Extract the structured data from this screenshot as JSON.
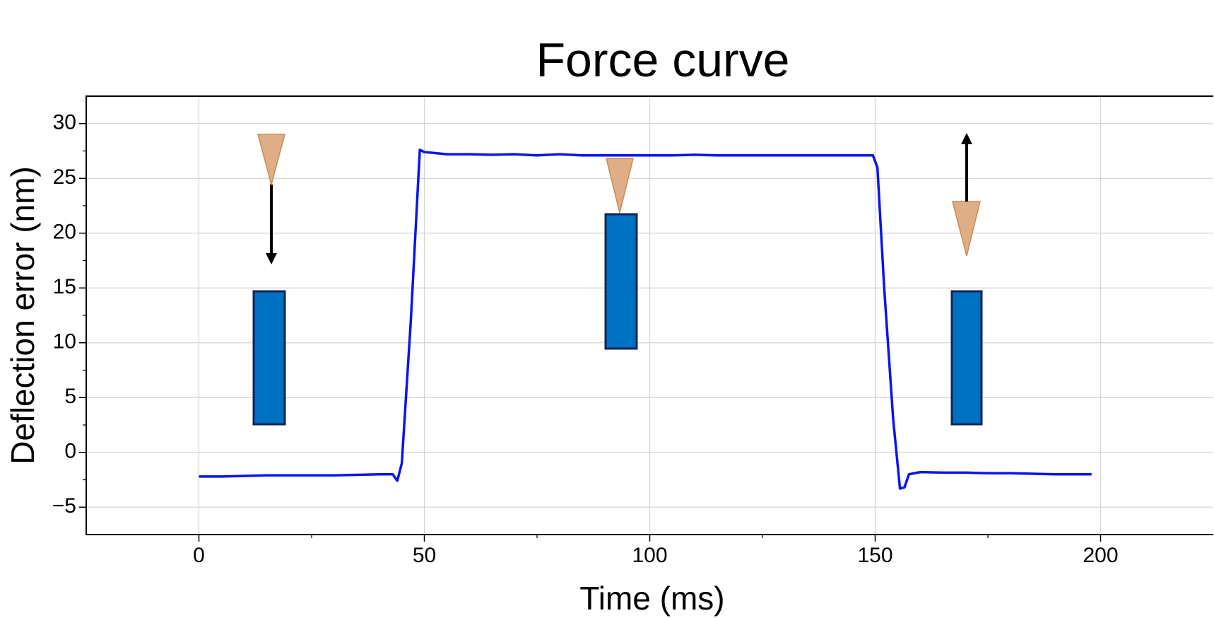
{
  "chart_data": {
    "type": "line",
    "title": "Force curve",
    "x_label": "Time (ms)",
    "y_label": "Deflection error (nm)",
    "x": [
      0,
      5,
      10,
      15,
      20,
      25,
      30,
      35,
      40,
      43,
      44,
      45,
      47,
      49,
      50,
      55,
      60,
      65,
      70,
      75,
      80,
      85,
      90,
      95,
      100,
      105,
      110,
      115,
      120,
      125,
      130,
      135,
      140,
      145,
      149.5,
      150.5,
      152,
      154,
      155.5,
      156.5,
      157.5,
      160,
      165,
      170,
      175,
      180,
      185,
      190,
      195,
      198
    ],
    "values": [
      -2.2,
      -2.2,
      -2.15,
      -2.1,
      -2.1,
      -2.1,
      -2.1,
      -2.05,
      -2.0,
      -2.0,
      -2.6,
      -1.0,
      12,
      27.6,
      27.4,
      27.2,
      27.2,
      27.15,
      27.2,
      27.1,
      27.2,
      27.1,
      27.1,
      27.1,
      27.1,
      27.1,
      27.15,
      27.1,
      27.1,
      27.1,
      27.1,
      27.1,
      27.1,
      27.1,
      27.1,
      26.0,
      15,
      3,
      -3.3,
      -3.2,
      -2.0,
      -1.8,
      -1.85,
      -1.85,
      -1.9,
      -1.9,
      -1.95,
      -2.0,
      -2.0,
      -2.0
    ],
    "color": "#0a14f0",
    "xlim": [
      -25,
      225
    ],
    "ylim": [
      -7.5,
      32.5
    ],
    "xticks": [
      0,
      50,
      100,
      150,
      200
    ],
    "xminorticks": [
      25,
      75,
      125,
      175
    ],
    "yticks": [
      {
        "value": -5,
        "label": "−5"
      },
      0,
      5,
      10,
      15,
      20,
      25,
      30
    ],
    "yminorticks": [
      -2.5,
      2.5,
      7.5,
      12.5,
      17.5,
      22.5,
      27.5
    ],
    "grid": true
  }
}
